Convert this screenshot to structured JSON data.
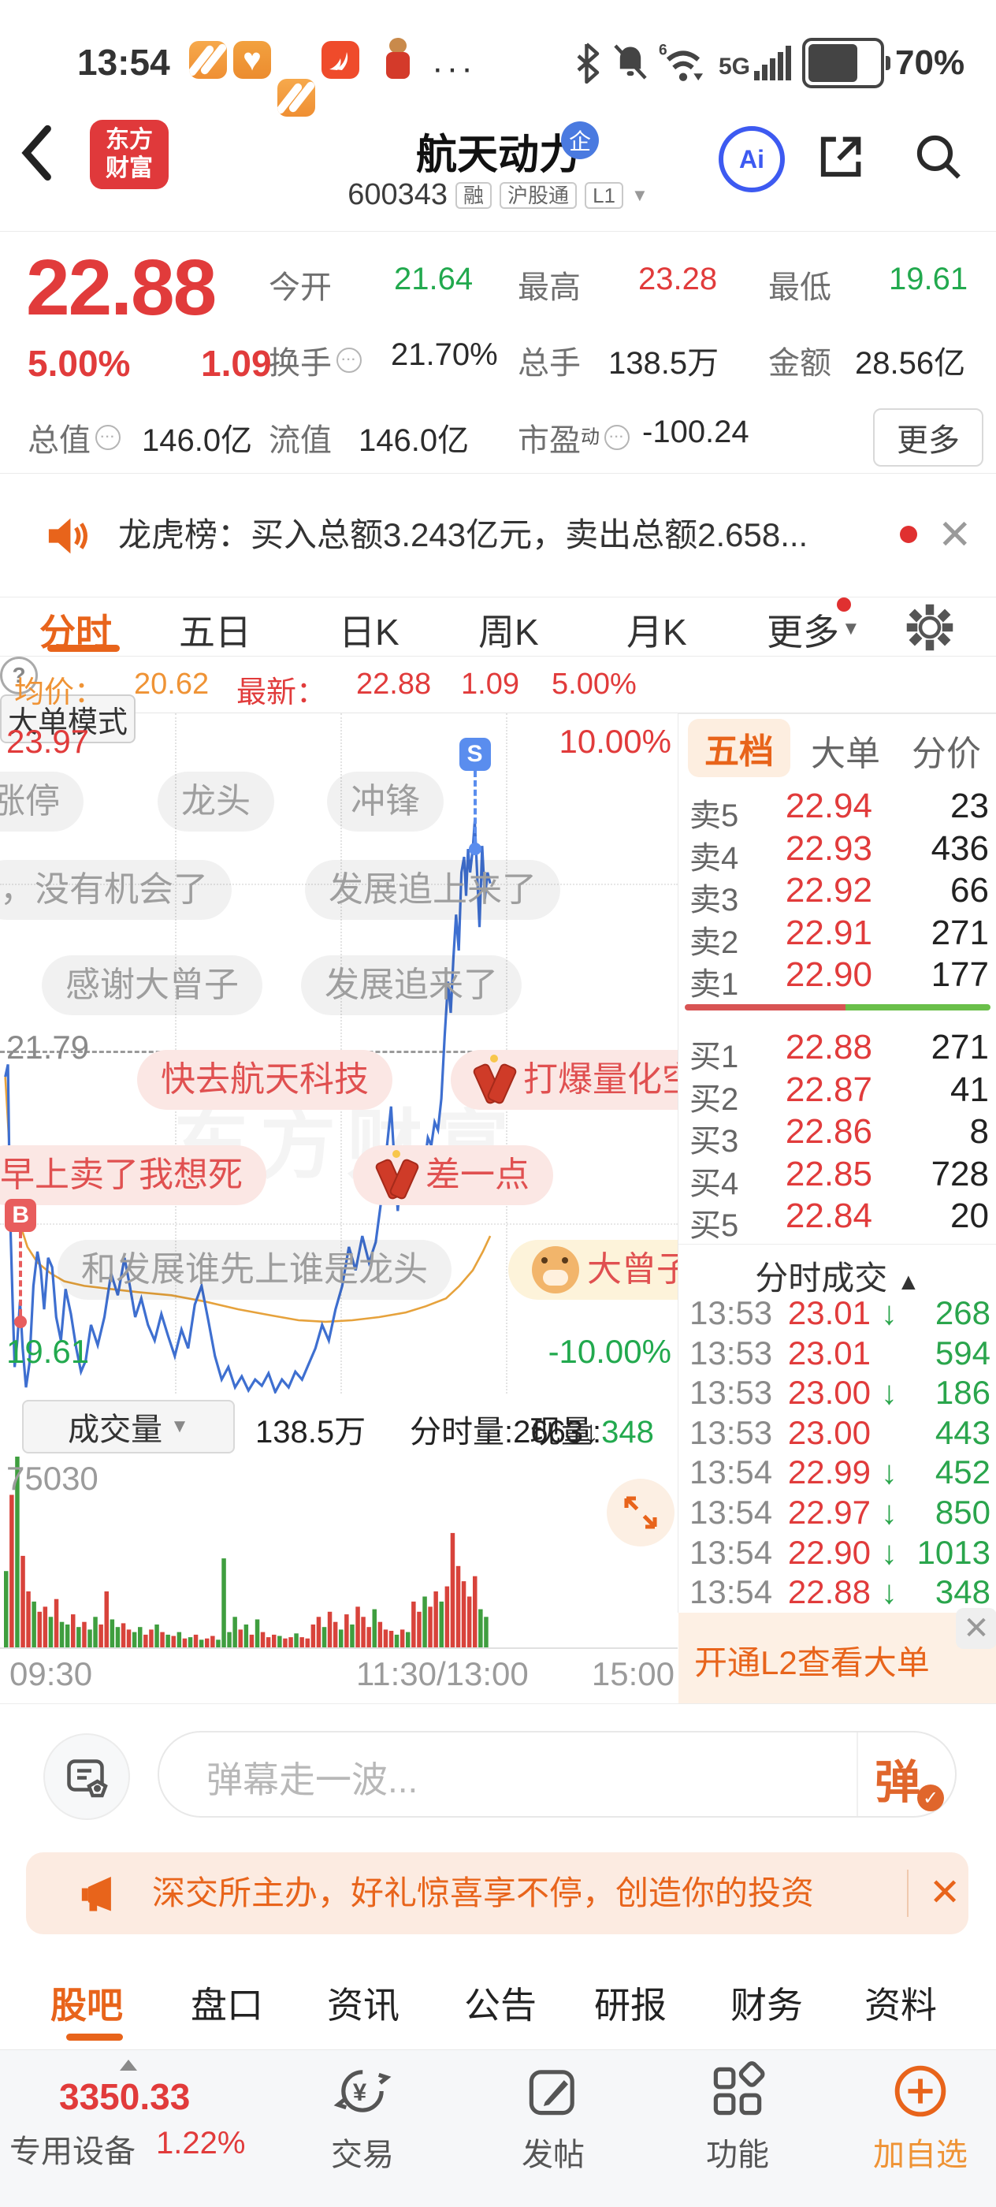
{
  "status_bar": {
    "time": "13:54",
    "ellipsis": "···",
    "battery": "70%",
    "network": "5G",
    "icons": [
      "app-stripes",
      "app-heart",
      "app-stripes",
      "app-swoosh",
      "monkey-avatar"
    ]
  },
  "header": {
    "logo_line1": "东方",
    "logo_line2": "财富",
    "title": "航天动力",
    "title_badge": "企",
    "code": "600343",
    "badges": [
      "融",
      "沪股通",
      "L1"
    ],
    "caret": "▼",
    "ai_label": "Ai"
  },
  "quote": {
    "price": "22.88",
    "change_pct": "5.00%",
    "change": "1.09",
    "row1": [
      {
        "label": "今开",
        "value": "21.64",
        "cls": "green"
      },
      {
        "label": "最高",
        "value": "23.28",
        "cls": "red"
      },
      {
        "label": "最低",
        "value": "19.61",
        "cls": "green"
      }
    ],
    "row2": [
      {
        "label": "换手",
        "value": "21.70%",
        "cls": "",
        "icon": true
      },
      {
        "label": "总手",
        "value": "138.5万",
        "cls": ""
      },
      {
        "label": "金额",
        "value": "28.56亿",
        "cls": ""
      }
    ],
    "row3": [
      {
        "label": "总值",
        "value": "146.0亿",
        "cls": "",
        "icon": true
      },
      {
        "label": "流值",
        "value": "146.0亿",
        "cls": ""
      },
      {
        "label": "市盈",
        "sup": "动",
        "value": "-100.24",
        "cls": "",
        "icon": true
      }
    ],
    "more_label": "更多"
  },
  "news_bar": {
    "text": "龙虎榜：买入总额3.243亿元，卖出总额2.658...",
    "close": "✕"
  },
  "chart_tabs": {
    "items": [
      "分时",
      "五日",
      "日K",
      "周K",
      "月K"
    ],
    "active_index": 0,
    "more": "更多",
    "more_caret": "▼"
  },
  "info_row": {
    "avg_label": "均价：",
    "avg": "20.62",
    "latest_label": "最新：",
    "latest": "22.88",
    "chg": "1.09",
    "pct": "5.00%",
    "help": "?",
    "mode_btn": "大单模式"
  },
  "chart_data": {
    "type": "line",
    "title": "航天动力 600343 分时图",
    "x_axis_labels": [
      "09:30",
      "11:30/13:00",
      "15:00"
    ],
    "ylim": [
      19.61,
      23.97
    ],
    "prev_close": 21.79,
    "y_labels": {
      "high": "23.97",
      "mid": "21.79",
      "low": "19.61",
      "pct_high": "10.00%",
      "pct_low": "-10.00%"
    },
    "grid": {
      "v_fraction": [
        0.258,
        0.502,
        0.746
      ],
      "h_fraction": [
        0.25,
        0.75
      ]
    },
    "legend_position": "none",
    "series": [
      {
        "name": "price",
        "color": "#3e6fd0",
        "points": [
          [
            0.002,
            21.64
          ],
          [
            0.006,
            21.72
          ],
          [
            0.009,
            20.8
          ],
          [
            0.013,
            20.2
          ],
          [
            0.016,
            19.78
          ],
          [
            0.02,
            19.95
          ],
          [
            0.024,
            20.2
          ],
          [
            0.028,
            19.9
          ],
          [
            0.033,
            19.65
          ],
          [
            0.038,
            19.8
          ],
          [
            0.044,
            20.3
          ],
          [
            0.05,
            20.52
          ],
          [
            0.055,
            20.4
          ],
          [
            0.06,
            20.15
          ],
          [
            0.066,
            20.48
          ],
          [
            0.072,
            20.42
          ],
          [
            0.078,
            20.1
          ],
          [
            0.085,
            19.95
          ],
          [
            0.092,
            20.28
          ],
          [
            0.1,
            20.12
          ],
          [
            0.108,
            19.9
          ],
          [
            0.115,
            19.75
          ],
          [
            0.122,
            19.82
          ],
          [
            0.13,
            20.05
          ],
          [
            0.14,
            19.92
          ],
          [
            0.15,
            20.1
          ],
          [
            0.16,
            20.38
          ],
          [
            0.17,
            20.24
          ],
          [
            0.18,
            20.48
          ],
          [
            0.188,
            20.3
          ],
          [
            0.196,
            20.1
          ],
          [
            0.205,
            20.22
          ],
          [
            0.215,
            20.05
          ],
          [
            0.225,
            19.95
          ],
          [
            0.235,
            20.12
          ],
          [
            0.245,
            19.98
          ],
          [
            0.255,
            19.85
          ],
          [
            0.265,
            20.02
          ],
          [
            0.275,
            19.9
          ],
          [
            0.285,
            20.18
          ],
          [
            0.295,
            20.3
          ],
          [
            0.305,
            20.08
          ],
          [
            0.315,
            19.85
          ],
          [
            0.325,
            19.7
          ],
          [
            0.335,
            19.78
          ],
          [
            0.345,
            19.65
          ],
          [
            0.355,
            19.72
          ],
          [
            0.365,
            19.63
          ],
          [
            0.375,
            19.7
          ],
          [
            0.385,
            19.66
          ],
          [
            0.395,
            19.74
          ],
          [
            0.405,
            19.62
          ],
          [
            0.415,
            19.7
          ],
          [
            0.425,
            19.65
          ],
          [
            0.435,
            19.75
          ],
          [
            0.445,
            19.7
          ],
          [
            0.455,
            19.8
          ],
          [
            0.465,
            19.9
          ],
          [
            0.475,
            20.05
          ],
          [
            0.485,
            19.95
          ],
          [
            0.495,
            20.15
          ],
          [
            0.505,
            20.3
          ],
          [
            0.515,
            20.55
          ],
          [
            0.525,
            20.4
          ],
          [
            0.535,
            20.62
          ],
          [
            0.545,
            20.45
          ],
          [
            0.555,
            20.58
          ],
          [
            0.565,
            20.9
          ],
          [
            0.572,
            21.2
          ],
          [
            0.578,
            21.45
          ],
          [
            0.583,
            21.1
          ],
          [
            0.588,
            20.78
          ],
          [
            0.593,
            21.05
          ],
          [
            0.598,
            21.15
          ],
          [
            0.603,
            20.95
          ],
          [
            0.608,
            21.05
          ],
          [
            0.613,
            20.88
          ],
          [
            0.618,
            21.0
          ],
          [
            0.623,
            21.15
          ],
          [
            0.628,
            21.08
          ],
          [
            0.633,
            21.25
          ],
          [
            0.638,
            21.2
          ],
          [
            0.643,
            21.35
          ],
          [
            0.648,
            21.3
          ],
          [
            0.653,
            21.5
          ],
          [
            0.658,
            21.9
          ],
          [
            0.663,
            22.25
          ],
          [
            0.667,
            22.05
          ],
          [
            0.671,
            22.4
          ],
          [
            0.675,
            22.68
          ],
          [
            0.679,
            22.45
          ],
          [
            0.683,
            22.95
          ],
          [
            0.687,
            23.05
          ],
          [
            0.69,
            22.8
          ],
          [
            0.693,
            23.1
          ],
          [
            0.696,
            22.95
          ],
          [
            0.7,
            23.1
          ],
          [
            0.703,
            23.28
          ],
          [
            0.707,
            22.9
          ],
          [
            0.71,
            22.6
          ],
          [
            0.714,
            23.12
          ],
          [
            0.718,
            22.78
          ],
          [
            0.722,
            22.95
          ],
          [
            0.726,
            22.88
          ]
        ]
      },
      {
        "name": "avg",
        "color": "#e6a23c",
        "points": [
          [
            0.002,
            21.64
          ],
          [
            0.01,
            21.05
          ],
          [
            0.02,
            20.75
          ],
          [
            0.035,
            20.55
          ],
          [
            0.05,
            20.45
          ],
          [
            0.07,
            20.38
          ],
          [
            0.09,
            20.33
          ],
          [
            0.12,
            20.3
          ],
          [
            0.16,
            20.28
          ],
          [
            0.2,
            20.26
          ],
          [
            0.25,
            20.24
          ],
          [
            0.3,
            20.2
          ],
          [
            0.35,
            20.15
          ],
          [
            0.4,
            20.11
          ],
          [
            0.44,
            20.08
          ],
          [
            0.48,
            20.07
          ],
          [
            0.52,
            20.08
          ],
          [
            0.56,
            20.1
          ],
          [
            0.6,
            20.13
          ],
          [
            0.63,
            20.17
          ],
          [
            0.66,
            20.22
          ],
          [
            0.68,
            20.3
          ],
          [
            0.7,
            20.4
          ],
          [
            0.715,
            20.52
          ],
          [
            0.726,
            20.62
          ]
        ]
      }
    ],
    "volume": {
      "max": 75030,
      "max_label": "75030",
      "slots": 120,
      "bars": [
        [
          30000,
          "g"
        ],
        [
          60000,
          "r"
        ],
        [
          75030,
          "g"
        ],
        [
          36000,
          "r"
        ],
        [
          22000,
          "r"
        ],
        [
          18000,
          "g"
        ],
        [
          14000,
          "r"
        ],
        [
          16000,
          "r"
        ],
        [
          12000,
          "g"
        ],
        [
          19000,
          "r"
        ],
        [
          10000,
          "g"
        ],
        [
          9000,
          "g"
        ],
        [
          13000,
          "r"
        ],
        [
          8000,
          "g"
        ],
        [
          10000,
          "r"
        ],
        [
          7000,
          "g"
        ],
        [
          12000,
          "g"
        ],
        [
          9000,
          "r"
        ],
        [
          22000,
          "r"
        ],
        [
          11000,
          "g"
        ],
        [
          8000,
          "g"
        ],
        [
          9500,
          "r"
        ],
        [
          7000,
          "r"
        ],
        [
          6000,
          "g"
        ],
        [
          8000,
          "g"
        ],
        [
          5000,
          "r"
        ],
        [
          7000,
          "r"
        ],
        [
          9000,
          "g"
        ],
        [
          6000,
          "r"
        ],
        [
          5000,
          "g"
        ],
        [
          4500,
          "r"
        ],
        [
          6000,
          "g"
        ],
        [
          3500,
          "r"
        ],
        [
          4000,
          "g"
        ],
        [
          5000,
          "r"
        ],
        [
          3000,
          "g"
        ],
        [
          3500,
          "r"
        ],
        [
          4500,
          "r"
        ],
        [
          3000,
          "g"
        ],
        [
          35000,
          "g"
        ],
        [
          6000,
          "g"
        ],
        [
          12000,
          "g"
        ],
        [
          7000,
          "r"
        ],
        [
          9000,
          "g"
        ],
        [
          5000,
          "r"
        ],
        [
          11000,
          "g"
        ],
        [
          6000,
          "r"
        ],
        [
          4000,
          "r"
        ],
        [
          5000,
          "r"
        ],
        [
          4500,
          "g"
        ],
        [
          3500,
          "r"
        ],
        [
          4000,
          "r"
        ],
        [
          5500,
          "g"
        ],
        [
          4000,
          "r"
        ],
        [
          3500,
          "r"
        ],
        [
          9000,
          "r"
        ],
        [
          12000,
          "r"
        ],
        [
          8000,
          "g"
        ],
        [
          14000,
          "r"
        ],
        [
          10000,
          "r"
        ],
        [
          7000,
          "g"
        ],
        [
          13000,
          "r"
        ],
        [
          9000,
          "g"
        ],
        [
          16000,
          "r"
        ],
        [
          12000,
          "r"
        ],
        [
          8000,
          "r"
        ],
        [
          15000,
          "g"
        ],
        [
          10000,
          "r"
        ],
        [
          7000,
          "r"
        ],
        [
          6500,
          "r"
        ],
        [
          5000,
          "g"
        ],
        [
          7000,
          "r"
        ],
        [
          6000,
          "g"
        ],
        [
          18000,
          "r"
        ],
        [
          14000,
          "r"
        ],
        [
          20000,
          "g"
        ],
        [
          16000,
          "r"
        ],
        [
          22000,
          "r"
        ],
        [
          18000,
          "g"
        ],
        [
          24000,
          "r"
        ],
        [
          45000,
          "r"
        ],
        [
          32000,
          "r"
        ],
        [
          26000,
          "r"
        ],
        [
          20000,
          "r"
        ],
        [
          28000,
          "r"
        ],
        [
          15000,
          "g"
        ],
        [
          12000,
          "g"
        ]
      ]
    },
    "markers": [
      {
        "type": "S",
        "color": "#5a8dee",
        "t": 0.703,
        "dot_price": 23.1
      },
      {
        "type": "B",
        "color": "#e85d5d",
        "t": 0.025,
        "dot_price": 20.07
      }
    ],
    "danmaku": [
      {
        "text": "涨停",
        "type": "gray",
        "x": -42,
        "y": 74
      },
      {
        "text": "龙头",
        "type": "gray",
        "x": 200,
        "y": 74
      },
      {
        "text": "冲锋",
        "type": "gray",
        "x": 415,
        "y": 74
      },
      {
        "text": "，没有机会了",
        "type": "gray",
        "x": -30,
        "y": 186
      },
      {
        "text": "发展追上来了",
        "type": "gray",
        "x": 387,
        "y": 186
      },
      {
        "text": "感谢大曾子",
        "type": "gray",
        "x": 53,
        "y": 307
      },
      {
        "text": "发展追来了",
        "type": "gray",
        "x": 382,
        "y": 307
      },
      {
        "text": "快去航天科技",
        "type": "red",
        "x": 174,
        "y": 427
      },
      {
        "text": "打爆量化空",
        "type": "red",
        "x": 572,
        "y": 427,
        "icon": "firecracker"
      },
      {
        "text": "早上卖了我想死",
        "type": "red",
        "x": -30,
        "y": 548
      },
      {
        "text": "差一点",
        "type": "red",
        "x": 448,
        "y": 548,
        "icon": "firecracker"
      },
      {
        "text": "和发展谁先上谁是龙头",
        "type": "gray",
        "x": 73,
        "y": 668
      },
      {
        "text": "大曾子",
        "type": "warm",
        "x": 645,
        "y": 668,
        "icon": "cow"
      }
    ],
    "watermark": "东方财富"
  },
  "vol_row": {
    "btn": "成交量",
    "caret": "▼",
    "total": "138.5万",
    "minute_label": "分时量:",
    "minute": "2663",
    "minute_arrow": "↓",
    "now_label": "现量:",
    "now": "348"
  },
  "order_book": {
    "tabs": [
      "五档",
      "大单",
      "分价"
    ],
    "active_tab": "五档",
    "sells": [
      [
        "卖5",
        "22.94",
        "23"
      ],
      [
        "卖4",
        "22.93",
        "436"
      ],
      [
        "卖3",
        "22.92",
        "66"
      ],
      [
        "卖2",
        "22.91",
        "271"
      ],
      [
        "卖1",
        "22.90",
        "177"
      ]
    ],
    "buys": [
      [
        "买1",
        "22.88",
        "271"
      ],
      [
        "买2",
        "22.87",
        "41"
      ],
      [
        "买3",
        "22.86",
        "8"
      ],
      [
        "买4",
        "22.85",
        "728"
      ],
      [
        "买5",
        "22.84",
        "20"
      ]
    ],
    "strength_red_pct": 52.5
  },
  "trades": {
    "header": "分时成交",
    "header_arrow": "▲",
    "rows": [
      [
        "13:53",
        "23.01",
        "↓",
        "268"
      ],
      [
        "13:53",
        "23.01",
        "",
        "594"
      ],
      [
        "13:53",
        "23.00",
        "↓",
        "186"
      ],
      [
        "13:53",
        "23.00",
        "",
        "443"
      ],
      [
        "13:54",
        "22.99",
        "↓",
        "452"
      ],
      [
        "13:54",
        "22.97",
        "↓",
        "850"
      ],
      [
        "13:54",
        "22.90",
        "↓",
        "1013"
      ],
      [
        "13:54",
        "22.88",
        "↓",
        "348"
      ]
    ],
    "l2_banner": "开通L2查看大单",
    "l2_close": "✕"
  },
  "comment": {
    "placeholder": "弹幕走一波...",
    "send": "弹",
    "send_check": "✓"
  },
  "promo": {
    "text": "深交所主办，好礼惊喜享不停，创造你的投资",
    "close": "✕"
  },
  "bottom_tabs": {
    "items": [
      "股吧",
      "盘口",
      "资讯",
      "公告",
      "研报",
      "财务",
      "资料"
    ],
    "active_index": 0
  },
  "footer": {
    "index_value": "3350.33",
    "sector": "专用设备",
    "sector_pct": "1.22%",
    "items": [
      "交易",
      "发帖",
      "功能",
      "加自选"
    ]
  }
}
